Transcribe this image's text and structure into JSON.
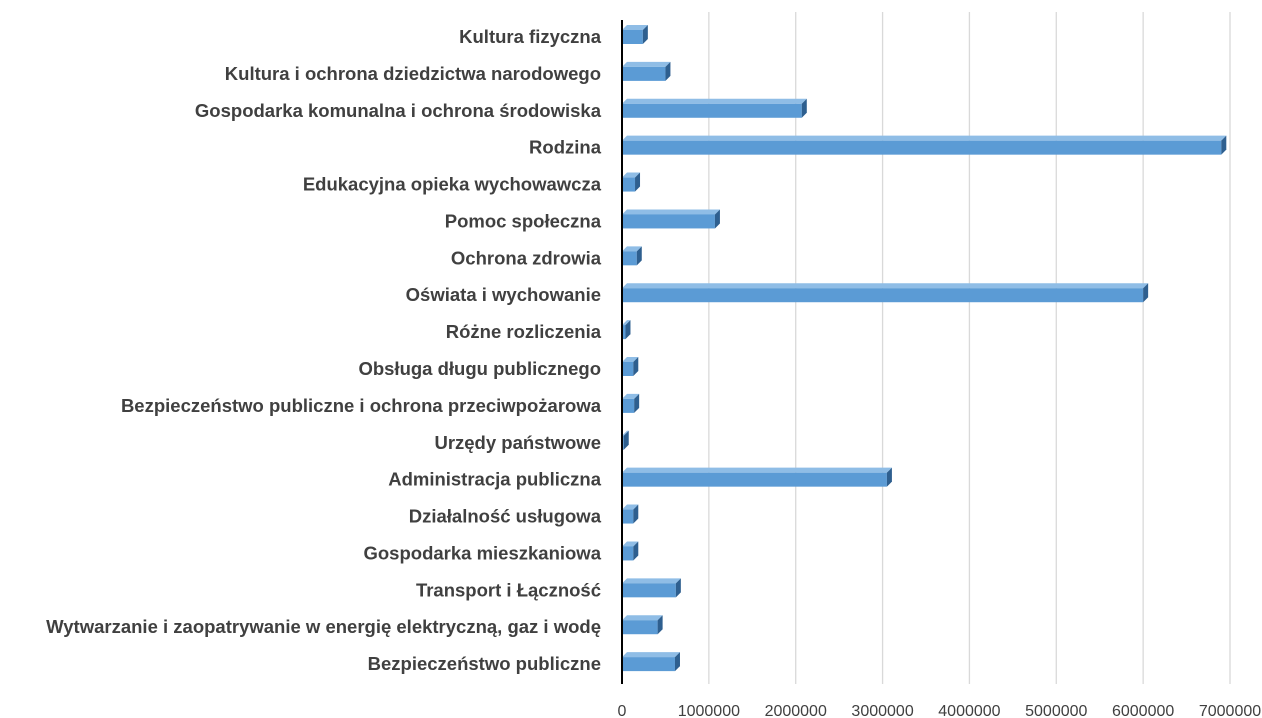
{
  "chart_data": {
    "type": "bar",
    "orientation": "horizontal",
    "categories": [
      "Kultura fizyczna",
      "Kultura i ochrona dziedzictwa narodowego",
      "Gospodarka komunalna i ochrona środowiska",
      "Rodzina",
      "Edukacyjna opieka wychowawcza",
      "Pomoc społeczna",
      "Ochrona zdrowia",
      "Oświata i wychowanie",
      "Różne rozliczenia",
      "Obsługa długu publicznego",
      "Bezpieczeństwo publiczne i ochrona przeciwpożarowa",
      "Urzędy państwowe",
      "Administracja publiczna",
      "Działalność usługowa",
      "Gospodarka mieszkaniowa",
      "Transport i Łączność",
      "Wytwarzanie i zaopatrywanie w energię elektryczną, gaz i wodę",
      "Bezpieczeństwo publiczne"
    ],
    "values": [
      240000,
      500000,
      2070000,
      6900000,
      150000,
      1070000,
      170000,
      6000000,
      40000,
      130000,
      140000,
      20000,
      3050000,
      130000,
      130000,
      620000,
      410000,
      610000
    ],
    "xlim": [
      0,
      7000000
    ],
    "xticks": [
      "0",
      "1000000",
      "2000000",
      "3000000",
      "4000000",
      "5000000",
      "6000000",
      "7000000"
    ],
    "xtick_values": [
      0,
      1000000,
      2000000,
      3000000,
      4000000,
      5000000,
      6000000,
      7000000
    ],
    "title": "",
    "xlabel": "",
    "ylabel": "",
    "grid": true,
    "legend": false,
    "bar_color": "#5b9bd5",
    "bar_side_color": "#2e5f8f",
    "bar_top_color": "#8fbde6",
    "grid_color": "#d9d9d9",
    "axis_color": "#000000"
  }
}
